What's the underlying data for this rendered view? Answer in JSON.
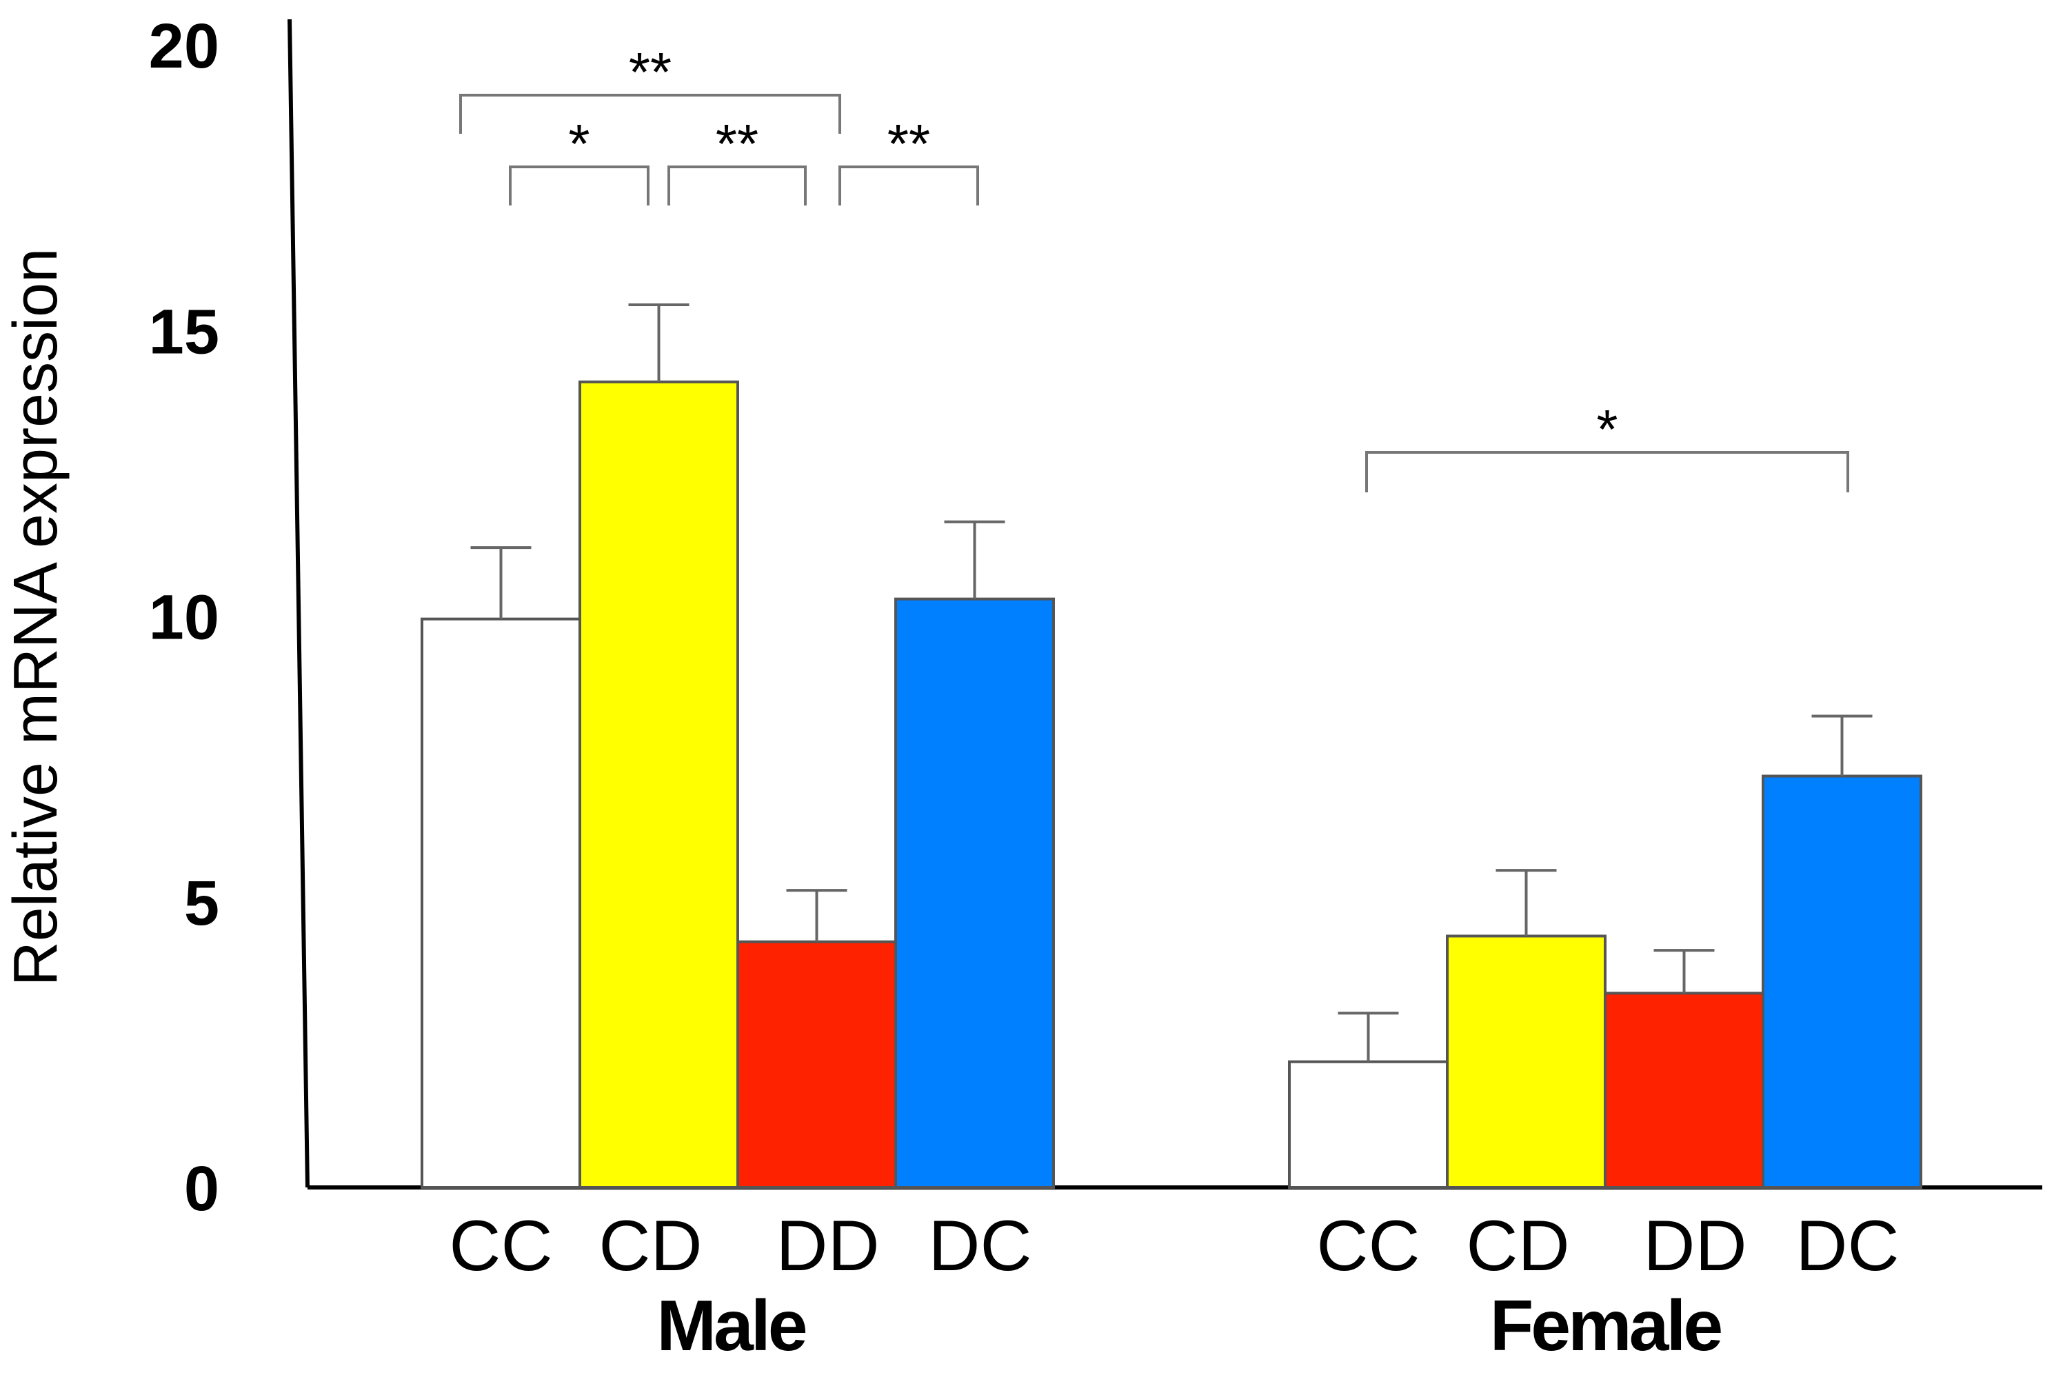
{
  "chart_data": {
    "type": "bar",
    "ylabel": "Relative mRNA expression",
    "ylim": [
      0,
      20
    ],
    "yticks": [
      "0",
      "5",
      "10",
      "15",
      "20"
    ],
    "groups": [
      {
        "name": "Male",
        "bars": [
          {
            "category": "CC",
            "value": 9.95,
            "error": 1.25,
            "color": "#ffffff"
          },
          {
            "category": "CD",
            "value": 14.1,
            "error": 1.35,
            "color": "#ffff00"
          },
          {
            "category": "DD",
            "value": 4.3,
            "error": 0.9,
            "color": "#ff2200"
          },
          {
            "category": "DC",
            "value": 10.3,
            "error": 1.35,
            "color": "#0080ff"
          }
        ],
        "significance": [
          {
            "from": 0,
            "to": 1,
            "label": "*"
          },
          {
            "from": 1,
            "to": 2,
            "label": "**"
          },
          {
            "from": 2,
            "to": 3,
            "label": "**"
          },
          {
            "from": 0,
            "to": 2,
            "label": "**"
          }
        ]
      },
      {
        "name": "Female",
        "bars": [
          {
            "category": "CC",
            "value": 2.2,
            "error": 0.85,
            "color": "#ffffff"
          },
          {
            "category": "CD",
            "value": 4.4,
            "error": 1.15,
            "color": "#ffff00"
          },
          {
            "category": "DD",
            "value": 3.4,
            "error": 0.75,
            "color": "#ff2200"
          },
          {
            "category": "DC",
            "value": 7.2,
            "error": 1.05,
            "color": "#0080ff"
          }
        ],
        "significance": [
          {
            "from": 0,
            "to": 3,
            "label": "*"
          }
        ]
      }
    ]
  }
}
